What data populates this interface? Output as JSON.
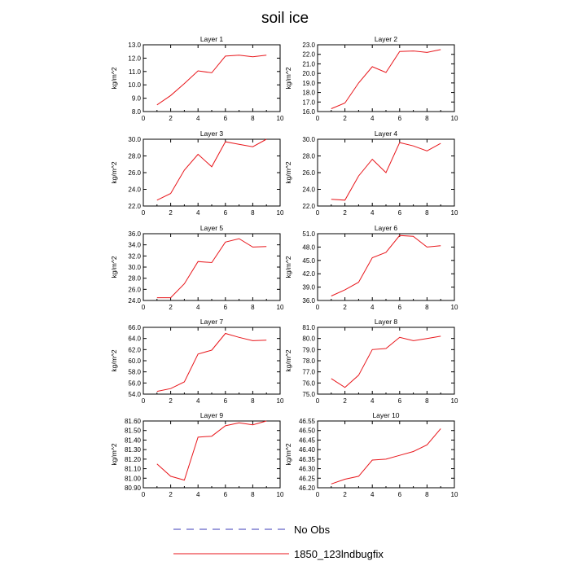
{
  "title": "soil ice",
  "legend": [
    {
      "label": "No Obs",
      "color": "#3b3bb8",
      "dash": true
    },
    {
      "label": "1850_123lndbugfix",
      "color": "#e8161b",
      "dash": false
    }
  ],
  "chart_data": [
    {
      "type": "line",
      "title": "Layer 1",
      "ylabel": "kg/m^2",
      "xlim": [
        0,
        10
      ],
      "xticks": [
        0,
        2,
        4,
        6,
        8,
        10
      ],
      "ylim": [
        8.0,
        13.0
      ],
      "yticks": [
        "8.0",
        "9.0",
        "10.0",
        "11.0",
        "12.0",
        "13.0"
      ],
      "series": [
        {
          "x": [
            1,
            2,
            3,
            4,
            5,
            6,
            7,
            8,
            9
          ],
          "y": [
            8.5,
            9.2,
            10.1,
            11.05,
            10.9,
            12.15,
            12.22,
            12.1,
            12.22
          ]
        }
      ]
    },
    {
      "type": "line",
      "title": "Layer 2",
      "ylabel": "kg/m^2",
      "xlim": [
        0,
        10
      ],
      "xticks": [
        0,
        2,
        4,
        6,
        8,
        10
      ],
      "ylim": [
        16.0,
        23.0
      ],
      "yticks": [
        "16.0",
        "17.0",
        "18.0",
        "19.0",
        "20.0",
        "21.0",
        "22.0",
        "23.0"
      ],
      "series": [
        {
          "x": [
            1,
            2,
            3,
            4,
            5,
            6,
            7,
            8,
            9
          ],
          "y": [
            16.3,
            16.9,
            19.0,
            20.7,
            20.1,
            22.3,
            22.35,
            22.2,
            22.5
          ]
        }
      ]
    },
    {
      "type": "line",
      "title": "Layer 3",
      "ylabel": "kg/m^2",
      "xlim": [
        0,
        10
      ],
      "xticks": [
        0,
        2,
        4,
        6,
        8,
        10
      ],
      "ylim": [
        22.0,
        30.0
      ],
      "yticks": [
        "22.0",
        "24.0",
        "26.0",
        "28.0",
        "30.0"
      ],
      "series": [
        {
          "x": [
            1,
            2,
            3,
            4,
            5,
            6,
            7,
            8,
            9
          ],
          "y": [
            22.7,
            23.5,
            26.3,
            28.2,
            26.7,
            29.7,
            29.4,
            29.1,
            30.0
          ]
        }
      ]
    },
    {
      "type": "line",
      "title": "Layer 4",
      "ylabel": "kg/m^2",
      "xlim": [
        0,
        10
      ],
      "xticks": [
        0,
        2,
        4,
        6,
        8,
        10
      ],
      "ylim": [
        22.0,
        30.0
      ],
      "yticks": [
        "22.0",
        "24.0",
        "26.0",
        "28.0",
        "30.0"
      ],
      "series": [
        {
          "x": [
            1,
            2,
            3,
            4,
            5,
            6,
            7,
            8,
            9
          ],
          "y": [
            22.8,
            22.7,
            25.6,
            27.6,
            26.0,
            29.6,
            29.2,
            28.6,
            29.5
          ]
        }
      ]
    },
    {
      "type": "line",
      "title": "Layer 5",
      "ylabel": "kg/m^2",
      "xlim": [
        0,
        10
      ],
      "xticks": [
        0,
        2,
        4,
        6,
        8,
        10
      ],
      "ylim": [
        24.0,
        36.0
      ],
      "yticks": [
        "24.0",
        "26.0",
        "28.0",
        "30.0",
        "32.0",
        "34.0",
        "36.0"
      ],
      "series": [
        {
          "x": [
            1,
            2,
            3,
            4,
            5,
            6,
            7,
            8,
            9
          ],
          "y": [
            24.5,
            24.5,
            27.0,
            31.0,
            30.8,
            34.5,
            35.1,
            33.6,
            33.7
          ]
        }
      ]
    },
    {
      "type": "line",
      "title": "Layer 6",
      "ylabel": "kg/m^2",
      "xlim": [
        0,
        10
      ],
      "xticks": [
        0,
        2,
        4,
        6,
        8,
        10
      ],
      "ylim": [
        36.0,
        51.0
      ],
      "yticks": [
        "36.0",
        "39.0",
        "42.0",
        "45.0",
        "48.0",
        "51.0"
      ],
      "series": [
        {
          "x": [
            1,
            2,
            3,
            4,
            5,
            6,
            7,
            8,
            9
          ],
          "y": [
            37.0,
            38.4,
            40.1,
            45.6,
            46.8,
            50.6,
            50.4,
            48.0,
            48.3
          ]
        }
      ]
    },
    {
      "type": "line",
      "title": "Layer 7",
      "ylabel": "kg/m^2",
      "xlim": [
        0,
        10
      ],
      "xticks": [
        0,
        2,
        4,
        6,
        8,
        10
      ],
      "ylim": [
        54.0,
        66.0
      ],
      "yticks": [
        "54.0",
        "56.0",
        "58.0",
        "60.0",
        "62.0",
        "64.0",
        "66.0"
      ],
      "series": [
        {
          "x": [
            1,
            2,
            3,
            4,
            5,
            6,
            7,
            8,
            9
          ],
          "y": [
            54.5,
            55.0,
            56.2,
            61.2,
            61.9,
            64.9,
            64.2,
            63.6,
            63.7
          ]
        }
      ]
    },
    {
      "type": "line",
      "title": "Layer 8",
      "ylabel": "kg/m^2",
      "xlim": [
        0,
        10
      ],
      "xticks": [
        0,
        2,
        4,
        6,
        8,
        10
      ],
      "ylim": [
        75.0,
        81.0
      ],
      "yticks": [
        "75.0",
        "76.0",
        "77.0",
        "78.0",
        "79.0",
        "80.0",
        "81.0"
      ],
      "series": [
        {
          "x": [
            1,
            2,
            3,
            4,
            5,
            6,
            7,
            8,
            9
          ],
          "y": [
            76.4,
            75.6,
            76.7,
            79.0,
            79.1,
            80.1,
            79.8,
            80.0,
            80.2
          ]
        }
      ]
    },
    {
      "type": "line",
      "title": "Layer 9",
      "ylabel": "kg/m^2",
      "xlim": [
        0,
        10
      ],
      "xticks": [
        0,
        2,
        4,
        6,
        8,
        10
      ],
      "ylim": [
        80.9,
        81.6
      ],
      "yticks": [
        "80.90",
        "81.00",
        "81.10",
        "81.20",
        "81.30",
        "81.40",
        "81.50",
        "81.60"
      ],
      "series": [
        {
          "x": [
            1,
            2,
            3,
            4,
            5,
            6,
            7,
            8,
            9
          ],
          "y": [
            81.15,
            81.02,
            80.98,
            81.43,
            81.44,
            81.55,
            81.58,
            81.56,
            81.6
          ]
        }
      ]
    },
    {
      "type": "line",
      "title": "Layer 10",
      "ylabel": "kg/m^2",
      "xlim": [
        0,
        10
      ],
      "xticks": [
        0,
        2,
        4,
        6,
        8,
        10
      ],
      "ylim": [
        46.2,
        46.55
      ],
      "yticks": [
        "46.20",
        "46.25",
        "46.30",
        "46.35",
        "46.40",
        "46.45",
        "46.50",
        "46.55"
      ],
      "series": [
        {
          "x": [
            1,
            2,
            3,
            4,
            5,
            6,
            7,
            8,
            9
          ],
          "y": [
            46.22,
            46.245,
            46.26,
            46.345,
            46.35,
            46.37,
            46.39,
            46.425,
            46.51
          ]
        }
      ]
    }
  ]
}
